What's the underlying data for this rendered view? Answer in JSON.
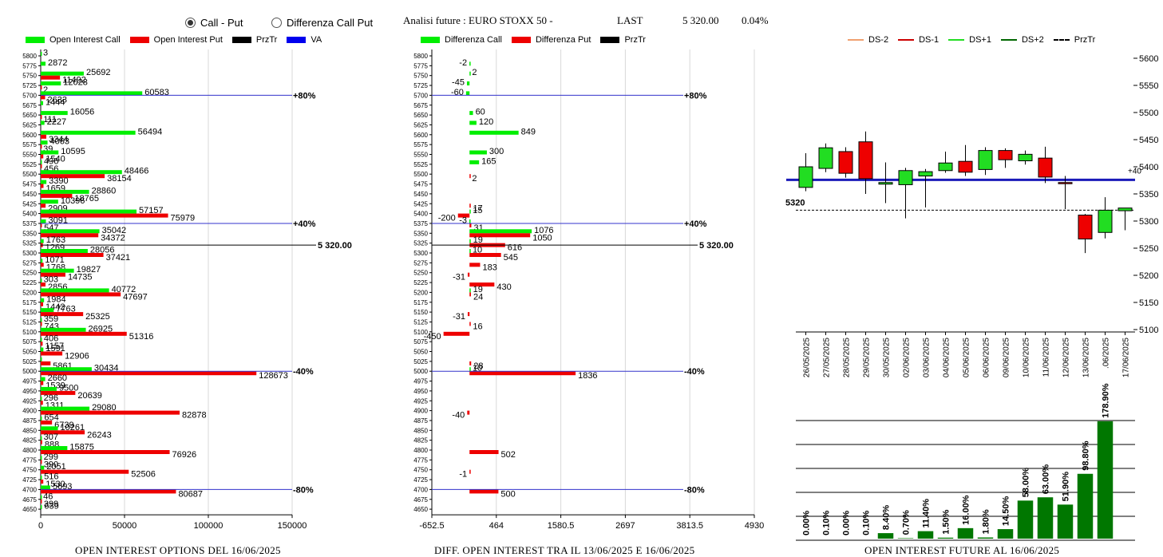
{
  "options": [
    {
      "label": "Call - Put",
      "selected": true
    },
    {
      "label": "Differenza Call Put",
      "selected": false
    }
  ],
  "header": {
    "title": "Analisi future : EURO STOXX 50 -",
    "last_label": "LAST",
    "last_value": "5 320.00",
    "change": "0.04%"
  },
  "legends": {
    "oi": [
      {
        "label": "Open Interest Call",
        "color": "#00ee00"
      },
      {
        "label": "Open Interest Put",
        "color": "#ee0000"
      },
      {
        "label": "PrzTr",
        "color": "#000000"
      },
      {
        "label": "VA",
        "color": "#0000ee"
      }
    ],
    "diff": [
      {
        "label": "Differenza Call",
        "color": "#00ee00"
      },
      {
        "label": "Differenza Put",
        "color": "#ee0000"
      },
      {
        "label": "PrzTr",
        "color": "#000000"
      }
    ],
    "future": [
      {
        "label": "DS-2",
        "color": "#f0a070"
      },
      {
        "label": "DS-1",
        "color": "#cc0000"
      },
      {
        "label": "DS+1",
        "color": "#22dd22"
      },
      {
        "label": "DS+2",
        "color": "#006600"
      },
      {
        "label": "PrzTr",
        "color": "#000000"
      }
    ]
  },
  "captions": {
    "oi": "OPEN INTEREST OPTIONS DEL 16/06/2025",
    "diff": "DIFF. OPEN INTEREST TRA IL 13/06/2025 E 16/06/2025",
    "future": "OPEN INTEREST FUTURE AL 16/06/2025"
  },
  "chart_data": [
    {
      "type": "bar",
      "orientation": "horizontal",
      "title": "OPEN INTEREST OPTIONS DEL 16/06/2025",
      "strikes": [
        5800,
        5775,
        5750,
        5725,
        5700,
        5675,
        5650,
        5625,
        5600,
        5575,
        5550,
        5525,
        5500,
        5475,
        5450,
        5425,
        5400,
        5375,
        5350,
        5325,
        5300,
        5275,
        5250,
        5225,
        5200,
        5175,
        5150,
        5125,
        5100,
        5075,
        5050,
        5025,
        5000,
        4975,
        4950,
        4925,
        4900,
        4875,
        4850,
        4825,
        4800,
        4775,
        4750,
        4725,
        4700,
        4675,
        4650
      ],
      "series": [
        {
          "name": "Open Interest Call",
          "values": [
            3,
            2872,
            25692,
            12028,
            60583,
            1444,
            16056,
            2227,
            56494,
            4063,
            10595,
            496,
            48466,
            3390,
            28860,
            10396,
            57157,
            3091,
            35042,
            1763,
            28056,
            1071,
            19827,
            303,
            40772,
            1984,
            7763,
            359,
            26925,
            406,
            1591,
            661,
            30434,
            2660,
            9500,
            296,
            29080,
            654,
            10261,
            307,
            15875,
            299,
            2051,
            516,
            5693,
            46,
            639
          ]
        },
        {
          "name": "Open Interest Put",
          "values": [
            0,
            0,
            11492,
            2,
            2633,
            0,
            111,
            0,
            3344,
            39,
            1540,
            456,
            38154,
            1659,
            18765,
            2909,
            75979,
            547,
            34372,
            1269,
            37421,
            1768,
            14735,
            2856,
            47697,
            1442,
            25325,
            743,
            51316,
            1157,
            12906,
            5861,
            128673,
            1539,
            20639,
            1311,
            82878,
            6739,
            26243,
            888,
            76926,
            390,
            52506,
            1530,
            80687,
            399,
            0
          ]
        }
      ],
      "labels": {
        "call": [
          "3",
          "2872",
          "25692",
          "12028",
          "60583",
          "1444",
          "16056",
          "2227",
          "56494",
          "4063",
          "10595",
          "496",
          "48466",
          "3390",
          "28860",
          "10396",
          "57157",
          "3091",
          "35042",
          "1763",
          "28056",
          "1071",
          "19827",
          "303",
          "40772",
          "1984",
          "7763",
          "359",
          "26925",
          "406",
          "1591",
          "",
          "30434",
          "2660",
          "9500",
          "296",
          "29080",
          "654",
          "10261",
          "307",
          "15875",
          "299",
          "2051",
          "516",
          "5693",
          "46",
          "639"
        ],
        "put": [
          "",
          "",
          "11492",
          "2",
          "2633",
          "",
          "111",
          "",
          "3344",
          "39",
          "1540",
          "456",
          "38154",
          "1659",
          "18765",
          "2909",
          "75979",
          "547",
          "34372",
          "1269",
          "37421",
          "1768",
          "14735",
          "2856",
          "47697",
          "1442",
          "25325",
          "743",
          "51316",
          "1157",
          "12906",
          "5861",
          "128673",
          "1539",
          "20639",
          "1311",
          "82878",
          "6739",
          "26243",
          "888",
          "76926",
          "390",
          "52506",
          "1530",
          "80687",
          "399",
          ""
        ]
      },
      "price_line": {
        "strike": 5320,
        "label": "5 320.00"
      },
      "percent_lines": [
        {
          "strike": 5700,
          "label": "+80%"
        },
        {
          "strike": 5375,
          "label": "+40%"
        },
        {
          "strike": 5000,
          "label": "-40%"
        },
        {
          "strike": 4700,
          "label": "-80%"
        }
      ],
      "xlim": [
        0,
        150000
      ],
      "xticks": [
        "0",
        "50000",
        "100000",
        "150000"
      ]
    },
    {
      "type": "bar",
      "orientation": "horizontal",
      "title": "DIFF. OPEN INTEREST TRA IL 13/06/2025 E 16/06/2025",
      "strikes": [
        5800,
        5775,
        5750,
        5725,
        5700,
        5675,
        5650,
        5625,
        5600,
        5575,
        5550,
        5525,
        5500,
        5475,
        5450,
        5425,
        5400,
        5375,
        5350,
        5325,
        5300,
        5275,
        5250,
        5225,
        5200,
        5175,
        5150,
        5125,
        5100,
        5075,
        5050,
        5025,
        5000,
        4975,
        4950,
        4925,
        4900,
        4875,
        4850,
        4825,
        4800,
        4775,
        4750,
        4725,
        4700,
        4675,
        4650
      ],
      "series": [
        {
          "name": "Differenza Call",
          "values": [
            0,
            -2,
            2,
            -45,
            -60,
            0,
            60,
            120,
            849,
            0,
            300,
            165,
            0,
            0,
            0,
            0,
            15,
            -3,
            1076,
            19,
            10,
            0,
            0,
            0,
            19,
            0,
            0,
            0,
            0,
            0,
            0,
            0,
            10,
            0,
            0,
            0,
            0,
            0,
            0,
            0,
            0,
            0,
            0,
            0,
            0,
            0,
            0
          ]
        },
        {
          "name": "Differenza Put",
          "values": [
            0,
            0,
            0,
            0,
            0,
            0,
            0,
            0,
            0,
            0,
            0,
            0,
            2,
            0,
            0,
            17,
            -200,
            31,
            1050,
            616,
            545,
            183,
            -31,
            430,
            24,
            0,
            -31,
            16,
            -450,
            0,
            0,
            28,
            1836,
            0,
            0,
            0,
            -40,
            0,
            0,
            0,
            502,
            0,
            -1,
            0,
            500,
            0,
            0
          ]
        }
      ],
      "labels": {
        "call": [
          "",
          "-2",
          "2",
          "-45",
          "-60",
          "",
          "60",
          "120",
          "849",
          "",
          "300",
          "165",
          "",
          "",
          "",
          "",
          "15",
          "-3",
          "1076",
          "19",
          "10",
          "",
          "",
          "",
          "19",
          "",
          "",
          "",
          "",
          "",
          "",
          "",
          "10",
          "",
          "",
          "",
          "",
          "",
          "",
          "",
          "",
          "",
          "",
          "",
          "",
          "",
          ""
        ],
        "put": [
          "",
          "",
          "",
          "",
          "",
          "",
          "",
          "",
          "",
          "",
          "",
          "",
          "2",
          "",
          "",
          "17",
          "-200",
          "31",
          "1050",
          "616",
          "545",
          "183",
          "-31",
          "430",
          "24",
          "",
          "-31",
          "16",
          "-450",
          "",
          "",
          "28",
          "1836",
          "",
          "",
          "",
          "-40",
          "",
          "",
          "",
          "502",
          "",
          "-1",
          "",
          "500",
          "",
          ""
        ]
      },
      "price_line": {
        "strike": 5320,
        "label": "5 320.00"
      },
      "percent_lines": [
        {
          "strike": 5700,
          "label": "+80%"
        },
        {
          "strike": 5375,
          "label": "+40%"
        },
        {
          "strike": 5000,
          "label": "-40%"
        },
        {
          "strike": 4700,
          "label": "-80%"
        }
      ],
      "xlim": [
        -652.5,
        4930
      ],
      "xticks": [
        "-652.5",
        "464",
        "1580.5",
        "2697",
        "3813.5",
        "4930"
      ]
    },
    {
      "type": "candlestick",
      "title": "OPEN INTEREST FUTURE AL 16/06/2025",
      "dates": [
        "26/05/2025",
        "27/05/2025",
        "28/05/2025",
        "29/05/2025",
        "30/05/2025",
        "02/06/2025",
        "03/06/2025",
        "04/06/2025",
        "05/06/2025",
        "06/06/2025",
        "09/06/2025",
        "10/06/2025",
        "11/06/2025",
        "12/06/2025",
        "13/06/2025",
        ".06/2025",
        "17/06/2025"
      ],
      "candles": [
        {
          "open": 5362,
          "close": 5400,
          "high": 5425,
          "low": 5355
        },
        {
          "open": 5397,
          "close": 5435,
          "high": 5443,
          "low": 5390
        },
        {
          "open": 5428,
          "close": 5388,
          "high": 5436,
          "low": 5380
        },
        {
          "open": 5446,
          "close": 5378,
          "high": 5465,
          "low": 5350
        },
        {
          "open": 5368,
          "close": 5371,
          "high": 5408,
          "low": 5333
        },
        {
          "open": 5367,
          "close": 5393,
          "high": 5398,
          "low": 5305
        },
        {
          "open": 5383,
          "close": 5391,
          "high": 5396,
          "low": 5325
        },
        {
          "open": 5393,
          "close": 5407,
          "high": 5428,
          "low": 5389
        },
        {
          "open": 5410,
          "close": 5390,
          "high": 5440,
          "low": 5383
        },
        {
          "open": 5395,
          "close": 5430,
          "high": 5436,
          "low": 5385
        },
        {
          "open": 5430,
          "close": 5413,
          "high": 5434,
          "low": 5398
        },
        {
          "open": 5411,
          "close": 5423,
          "high": 5430,
          "low": 5404
        },
        {
          "open": 5416,
          "close": 5381,
          "high": 5437,
          "low": 5370
        },
        {
          "open": 5371,
          "close": 5370,
          "high": 5383,
          "low": 5322
        },
        {
          "open": 5311,
          "close": 5267,
          "high": 5313,
          "low": 5241
        },
        {
          "open": 5279,
          "close": 5320,
          "high": 5344,
          "low": 5268
        },
        {
          "open": 5319,
          "close": 5324,
          "high": 5324,
          "low": 5283
        }
      ],
      "va_level": 5376,
      "va_label": "+40",
      "przTr": 5320,
      "przTr_label": "5320",
      "ylim": [
        5100,
        5600
      ],
      "yticks": [
        "5600",
        "5550",
        "5500",
        "5450",
        "5400",
        "5350",
        "5300",
        "5250",
        "5200",
        "5150",
        "5100"
      ]
    },
    {
      "type": "bar",
      "title": "",
      "categories": [
        "26/05/2025",
        "27/05/2025",
        "28/05/2025",
        "29/05/2025",
        "30/05/2025",
        "02/06/2025",
        "03/06/2025",
        "04/06/2025",
        "05/06/2025",
        "06/06/2025",
        "09/06/2025",
        "10/06/2025",
        "11/06/2025",
        "12/06/2025",
        "13/06/2025",
        ".06/2025",
        "17/06/2025"
      ],
      "values": [
        0.0,
        0.1,
        0.0,
        0.1,
        8.4,
        0.7,
        11.4,
        1.5,
        16.0,
        1.8,
        14.5,
        58.0,
        63.0,
        51.9,
        98.8,
        178.9,
        0
      ],
      "labels": [
        "0.00%",
        "0.10%",
        "0.00%",
        "0.10%",
        "8.40%",
        "0.70%",
        "11.40%",
        "1.50%",
        "16.00%",
        "1.80%",
        "14.50%",
        "58.00%",
        "63.00%",
        "51.90%",
        "98.80%",
        "178.90%",
        ""
      ],
      "ylim": [
        0,
        180
      ]
    }
  ]
}
